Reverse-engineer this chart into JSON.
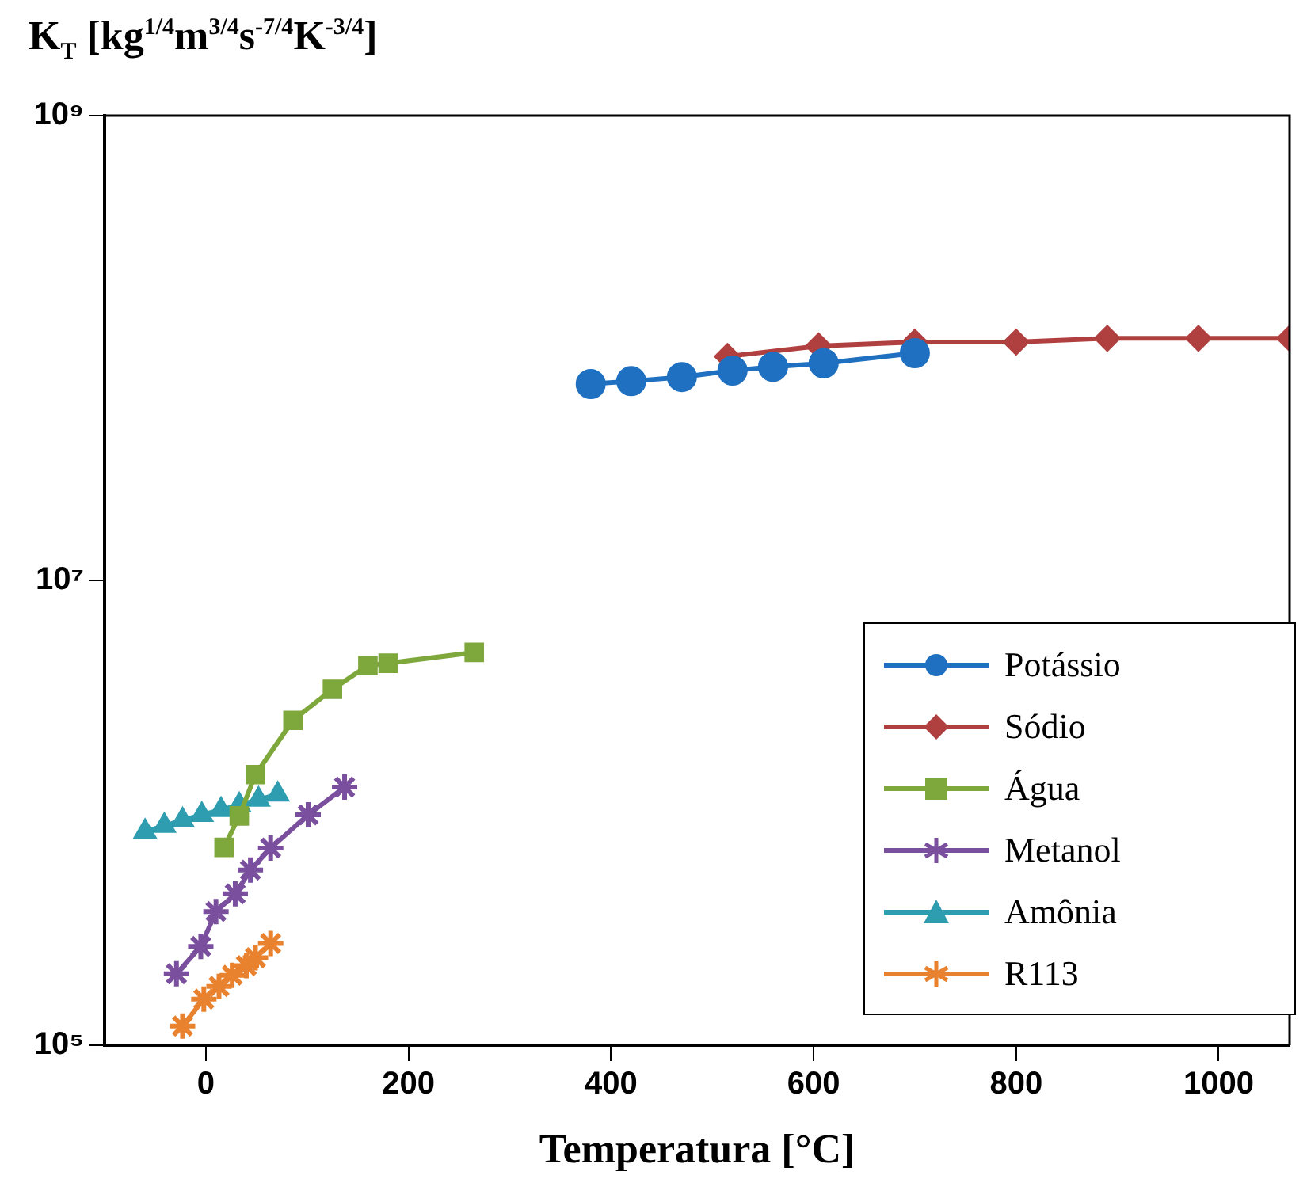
{
  "chart_data": {
    "type": "line",
    "ylabel": "K$_{T}$ [kg$^{1/4}$m$^{3/4}$s$^{-7/4}$K$^{-3/4}$]",
    "xlabel": "Temperatura [°C]",
    "log": "y",
    "xlim": [
      -100,
      1070
    ],
    "xticks": [
      0,
      200,
      400,
      600,
      800,
      1000
    ],
    "ylim": [
      100000,
      1000000000
    ],
    "yticks": [
      {
        "value": 100000,
        "label": "10⁵"
      },
      {
        "value": 10000000,
        "label": "10⁷"
      },
      {
        "value": 1000000000,
        "label": "10⁹"
      }
    ],
    "grid": false,
    "legend": "bottom right",
    "series": [
      {
        "name": "Potássio",
        "color": "#1f70c1",
        "marker": "circle",
        "x": [
          380,
          420,
          470,
          520,
          560,
          610,
          700
        ],
        "values": [
          70000000,
          72000000,
          75000000,
          80000000,
          83000000,
          86000000,
          95000000
        ]
      },
      {
        "name": "Sódio",
        "color": "#b0403f",
        "marker": "diamond",
        "x": [
          515,
          605,
          700,
          800,
          890,
          980,
          1070
        ],
        "values": [
          92000000,
          102000000,
          106000000,
          106000000,
          110000000,
          110000000,
          110000000
        ]
      },
      {
        "name": "Água",
        "color": "#7ea73c",
        "marker": "square",
        "x": [
          18,
          33,
          49,
          86,
          125,
          160,
          180,
          265
        ],
        "values": [
          710000,
          970000,
          1460000,
          2500000,
          3400000,
          4300000,
          4400000,
          4900000
        ]
      },
      {
        "name": "Metanol",
        "color": "#7a4f9d",
        "marker": "cross",
        "x": [
          -29,
          -5,
          10,
          29,
          44,
          64,
          101,
          137
        ],
        "values": [
          203000,
          266000,
          376000,
          448000,
          567000,
          706000,
          980000,
          1290000
        ]
      },
      {
        "name": "Amônia",
        "color": "#2f9db0",
        "marker": "triangle",
        "x": [
          -60,
          -41,
          -23,
          -4,
          15,
          33,
          52,
          71
        ],
        "values": [
          830000,
          880000,
          930000,
          980000,
          1030000,
          1080000,
          1140000,
          1200000
        ]
      },
      {
        "name": "R113",
        "color": "#e8822f",
        "marker": "cross",
        "x": [
          -23,
          -2,
          13,
          26,
          40,
          49,
          64
        ],
        "values": [
          121000,
          158000,
          179000,
          200000,
          220000,
          238000,
          274000
        ]
      }
    ]
  }
}
